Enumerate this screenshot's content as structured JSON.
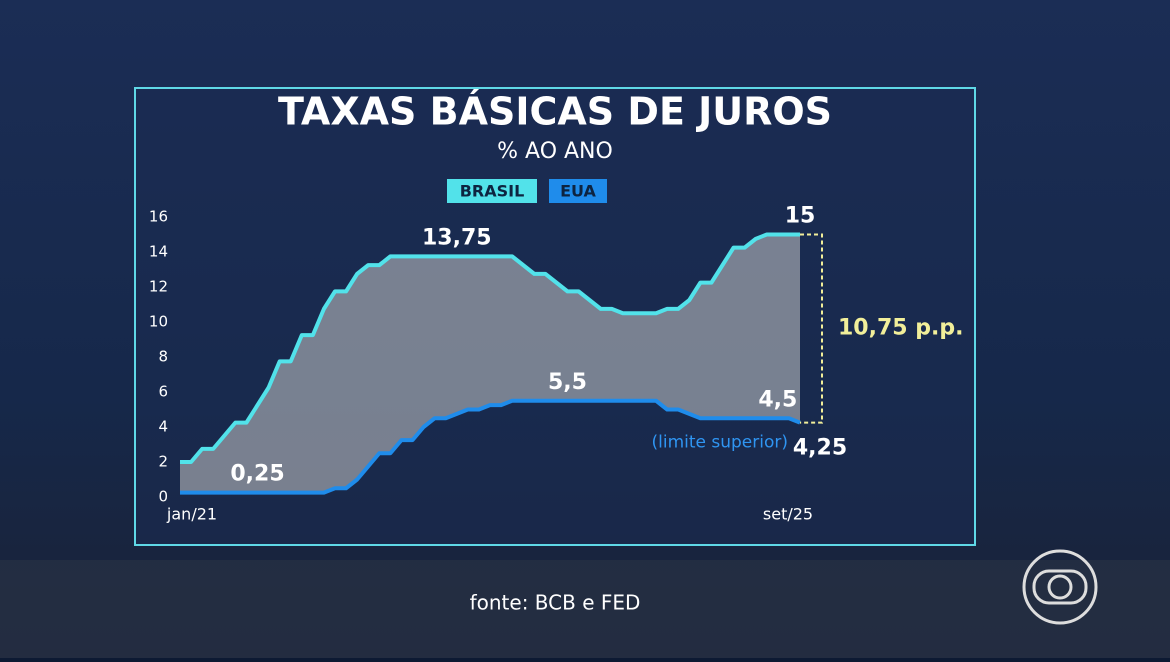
{
  "chart_data": {
    "type": "line",
    "title": "TAXAS BÁSICAS DE JUROS",
    "subtitle": "% AO ANO",
    "source": "fonte: BCB e FED",
    "categories": [
      "jan/21",
      null,
      null,
      null,
      null,
      null,
      null,
      null,
      null,
      null,
      null,
      null,
      null,
      null,
      null,
      null,
      null,
      null,
      null,
      null,
      null,
      null,
      null,
      null,
      null,
      null,
      null,
      null,
      null,
      null,
      null,
      null,
      null,
      null,
      null,
      null,
      null,
      null,
      null,
      null,
      null,
      null,
      null,
      null,
      null,
      null,
      null,
      null,
      null,
      null,
      null,
      null,
      null,
      null,
      null,
      null,
      "set/25"
    ],
    "series": [
      {
        "name": "BRASIL",
        "color": "#52e2ea",
        "values": [
          2,
          2,
          2.75,
          2.75,
          3.5,
          4.25,
          4.25,
          5.25,
          6.25,
          7.75,
          7.75,
          9.25,
          9.25,
          10.75,
          11.75,
          11.75,
          12.75,
          13.25,
          13.25,
          13.75,
          13.75,
          13.75,
          13.75,
          13.75,
          13.75,
          13.75,
          13.75,
          13.75,
          13.75,
          13.75,
          13.75,
          13.25,
          12.75,
          12.75,
          12.25,
          11.75,
          11.75,
          11.25,
          10.75,
          10.75,
          10.5,
          10.5,
          10.5,
          10.5,
          10.75,
          10.75,
          11.25,
          12.25,
          12.25,
          13.25,
          14.25,
          14.25,
          14.75,
          15,
          15,
          15,
          15
        ],
        "value_labels": [
          null,
          null,
          null,
          null,
          null,
          null,
          null,
          null,
          null,
          null,
          null,
          null,
          null,
          null,
          null,
          null,
          null,
          null,
          null,
          null,
          null,
          null,
          null,
          null,
          null,
          "13,75",
          null,
          null,
          null,
          null,
          null,
          null,
          null,
          null,
          null,
          null,
          null,
          null,
          null,
          null,
          null,
          null,
          null,
          null,
          null,
          null,
          null,
          null,
          null,
          null,
          null,
          null,
          null,
          null,
          null,
          null,
          "15"
        ]
      },
      {
        "name": "EUA",
        "color": "#1f8ceb",
        "values": [
          0.25,
          0.25,
          0.25,
          0.25,
          0.25,
          0.25,
          0.25,
          0.25,
          0.25,
          0.25,
          0.25,
          0.25,
          0.25,
          0.25,
          0.5,
          0.5,
          1,
          1.75,
          2.5,
          2.5,
          3.25,
          3.25,
          4,
          4.5,
          4.5,
          4.75,
          5,
          5,
          5.25,
          5.25,
          5.5,
          5.5,
          5.5,
          5.5,
          5.5,
          5.5,
          5.5,
          5.5,
          5.5,
          5.5,
          5.5,
          5.5,
          5.5,
          5.5,
          5,
          5,
          4.75,
          4.5,
          4.5,
          4.5,
          4.5,
          4.5,
          4.5,
          4.5,
          4.5,
          4.5,
          4.25
        ],
        "value_labels": [
          null,
          null,
          null,
          null,
          null,
          null,
          null,
          "0,25",
          null,
          null,
          null,
          null,
          null,
          null,
          null,
          null,
          null,
          null,
          null,
          null,
          null,
          null,
          null,
          null,
          null,
          null,
          null,
          null,
          null,
          null,
          null,
          null,
          null,
          null,
          null,
          "5,5",
          null,
          null,
          null,
          null,
          null,
          null,
          null,
          null,
          null,
          null,
          null,
          null,
          null,
          null,
          null,
          null,
          null,
          null,
          "4,5",
          null,
          "4,25"
        ]
      }
    ],
    "note": "(limite superior)",
    "gap": {
      "value": 10.75,
      "label": "10,75 p.p."
    },
    "ylim": [
      0,
      16
    ],
    "yticks": [
      0,
      2,
      4,
      6,
      8,
      10,
      12,
      14,
      16
    ],
    "grid": false
  }
}
